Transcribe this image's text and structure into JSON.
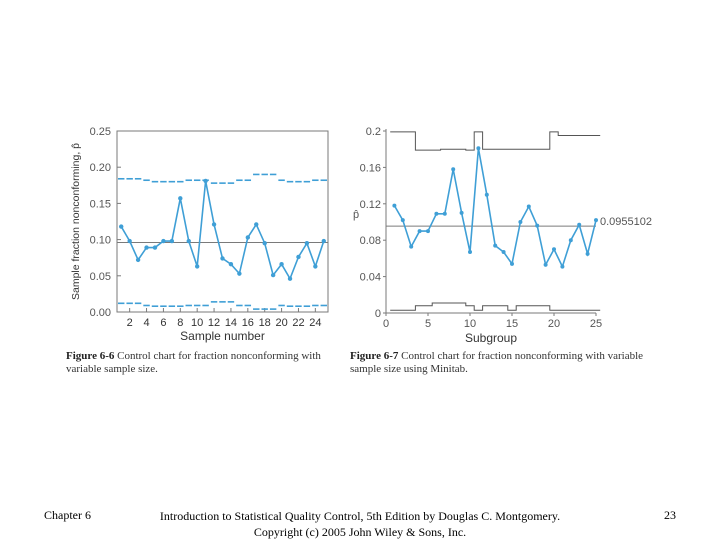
{
  "footer": {
    "chapter": "Chapter 6",
    "citation_line1": "Introduction to Statistical Quality Control, 5th Edition by Douglas C. Montgomery.",
    "citation_line2": "Copyright (c) 2005 John Wiley & Sons, Inc.",
    "page_number": "23"
  },
  "captions": {
    "left_label": "Figure 6-6",
    "left_text": "Control chart for fraction nonconforming with variable sample size.",
    "right_label": "Figure 6-7",
    "right_text": "Control chart for fraction nonconforming with variable sample size using Minitab."
  },
  "colors": {
    "series": "#3f9fd6",
    "limits": "#3f9fd6",
    "axis": "#7a7a7a",
    "minitab_limits": "#555555"
  },
  "chart_data": [
    {
      "type": "line",
      "title": "",
      "xlabel": "Sample number",
      "ylabel": "Sample fraction nonconforming, p̂",
      "xlim": [
        0.5,
        25.5
      ],
      "ylim": [
        0,
        0.25
      ],
      "xticks": [
        2,
        4,
        6,
        8,
        10,
        12,
        14,
        16,
        18,
        20,
        22,
        24
      ],
      "yticks": [
        0.0,
        0.05,
        0.1,
        0.15,
        0.2,
        0.25
      ],
      "ytick_labels": [
        "0.00",
        "0.05",
        "0.10",
        "0.15",
        "0.20",
        "0.25"
      ],
      "x": [
        1,
        2,
        3,
        4,
        5,
        6,
        7,
        8,
        9,
        10,
        11,
        12,
        13,
        14,
        15,
        16,
        17,
        18,
        19,
        20,
        21,
        22,
        23,
        24,
        25
      ],
      "series": [
        {
          "name": "p̂",
          "values": [
            0.118,
            0.098,
            0.072,
            0.089,
            0.089,
            0.098,
            0.098,
            0.157,
            0.098,
            0.063,
            0.181,
            0.121,
            0.074,
            0.066,
            0.053,
            0.103,
            0.121,
            0.095,
            0.051,
            0.066,
            0.046,
            0.076,
            0.095,
            0.063,
            0.098
          ]
        }
      ],
      "center_line": 0.096,
      "ucl": [
        0.184,
        0.184,
        0.184,
        0.182,
        0.18,
        0.18,
        0.18,
        0.18,
        0.182,
        0.182,
        0.182,
        0.178,
        0.178,
        0.178,
        0.182,
        0.182,
        0.19,
        0.19,
        0.19,
        0.182,
        0.18,
        0.18,
        0.18,
        0.182,
        0.182
      ],
      "lcl": [
        0.012,
        0.012,
        0.012,
        0.009,
        0.008,
        0.008,
        0.008,
        0.008,
        0.009,
        0.009,
        0.009,
        0.014,
        0.014,
        0.014,
        0.009,
        0.009,
        0.004,
        0.004,
        0.004,
        0.009,
        0.008,
        0.008,
        0.008,
        0.009,
        0.009
      ]
    },
    {
      "type": "line",
      "title": "",
      "xlabel": "Subgroup",
      "ylabel": "p̂",
      "xlim": [
        0,
        25
      ],
      "ylim": [
        0,
        0.2
      ],
      "xticks": [
        0,
        5,
        10,
        15,
        20,
        25
      ],
      "yticks": [
        0,
        0.04,
        0.08,
        0.12,
        0.16,
        0.2
      ],
      "ytick_labels": [
        "0",
        "0.04",
        "0.08",
        "0.12",
        "0.16",
        "0.2"
      ],
      "x": [
        1,
        2,
        3,
        4,
        5,
        6,
        7,
        8,
        9,
        10,
        11,
        12,
        13,
        14,
        15,
        16,
        17,
        18,
        19,
        20,
        21,
        22,
        23,
        24,
        25
      ],
      "series": [
        {
          "name": "p̂",
          "values": [
            0.118,
            0.102,
            0.073,
            0.09,
            0.09,
            0.109,
            0.109,
            0.158,
            0.11,
            0.067,
            0.181,
            0.13,
            0.074,
            0.067,
            0.054,
            0.1,
            0.117,
            0.096,
            0.053,
            0.07,
            0.051,
            0.08,
            0.097,
            0.065,
            0.102
          ]
        }
      ],
      "center_line": 0.0955102,
      "center_label": "0.0955102",
      "ucl": [
        0.199,
        0.199,
        0.199,
        0.179,
        0.179,
        0.179,
        0.18,
        0.18,
        0.18,
        0.179,
        0.199,
        0.18,
        0.18,
        0.18,
        0.18,
        0.18,
        0.18,
        0.18,
        0.18,
        0.199,
        0.195,
        0.195,
        0.195,
        0.195,
        0.195
      ],
      "lcl": [
        0.003,
        0.003,
        0.003,
        0.008,
        0.008,
        0.011,
        0.011,
        0.011,
        0.011,
        0.008,
        0.003,
        0.008,
        0.008,
        0.008,
        0.003,
        0.008,
        0.008,
        0.008,
        0.008,
        0.003,
        0.003,
        0.003,
        0.003,
        0.003,
        0.003
      ]
    }
  ]
}
